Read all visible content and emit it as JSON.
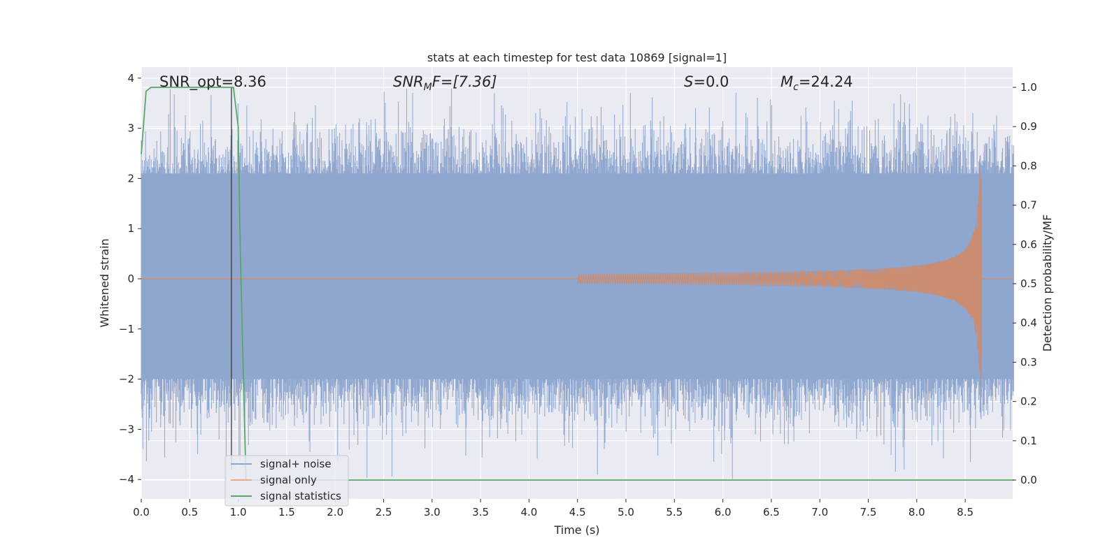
{
  "chart_data": {
    "type": "line",
    "title": "stats at each timestep for test data 10869 [signal=1]",
    "xlabel": "Time (s)",
    "ylabel": "Whitened strain",
    "y2label": "Detection probability/MF",
    "xlim": [
      0.0,
      9.0
    ],
    "ylim": [
      -4.4,
      4.2
    ],
    "y2lim": [
      -0.05,
      1.05
    ],
    "xticks": [
      "0.0",
      "0.5",
      "1.0",
      "1.5",
      "2.0",
      "2.5",
      "3.0",
      "3.5",
      "4.0",
      "4.5",
      "5.0",
      "5.5",
      "6.0",
      "6.5",
      "7.0",
      "7.5",
      "8.0",
      "8.5"
    ],
    "yticks": [
      "−4",
      "−3",
      "−2",
      "−1",
      "0",
      "1",
      "2",
      "3",
      "4"
    ],
    "y2ticks": [
      "0.0",
      "0.1",
      "0.2",
      "0.3",
      "0.4",
      "0.5",
      "0.6",
      "0.7",
      "0.8",
      "0.9",
      "1.0"
    ],
    "annotations": {
      "snr_opt": "SNR_opt=8.36",
      "snr_mf_pre": "SNR",
      "snr_mf_sub": "M",
      "snr_mf_post": "F=[7.36]",
      "s_pre": "S",
      "s_post": "=0.0",
      "mc_pre": "M",
      "mc_sub": "c",
      "mc_post": "=24.24"
    },
    "legend": {
      "placement": "lower-left",
      "entries": [
        "signal+ noise",
        "signal only",
        "signal statistics"
      ]
    },
    "marker_time": 0.93,
    "series": [
      {
        "name": "signal+ noise",
        "color": "#8fa6cf",
        "x_range": [
          0.0,
          9.0
        ],
        "envelope": [
          -2.0,
          2.1
        ],
        "peaks_max": 3.85,
        "peaks_min": -4.0
      },
      {
        "name": "signal only",
        "color": "#dd8452",
        "chirp_start": 4.5,
        "merger_time": 8.67,
        "peak_amplitude": 2.2
      },
      {
        "name": "signal statistics",
        "color": "#55a868",
        "axis": "right",
        "x": [
          0.0,
          0.05,
          0.1,
          0.2,
          0.3,
          0.5,
          0.7,
          0.9,
          0.95,
          1.0,
          1.02,
          1.05,
          1.08,
          1.1,
          1.3,
          2.0,
          3.0,
          4.0,
          5.0,
          6.0,
          7.0,
          8.0,
          9.0
        ],
        "y": [
          0.83,
          0.99,
          1.0,
          1.0,
          1.0,
          1.0,
          1.0,
          1.0,
          1.0,
          0.9,
          0.6,
          0.3,
          0.0,
          0.0,
          0.0,
          0.0,
          0.0,
          0.0,
          0.0,
          0.0,
          0.0,
          0.0,
          0.0
        ]
      }
    ]
  }
}
